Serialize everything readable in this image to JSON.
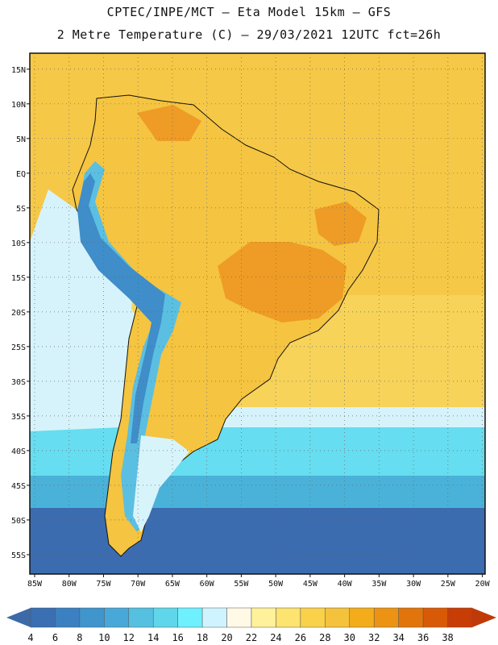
{
  "title": {
    "line1": "CPTEC/INPE/MCT –  Eta Model 15km – GFS",
    "line2": "2 Metre Temperature (C) – 29/03/2021 12UTC fct=26h"
  },
  "axes": {
    "lon_labels": [
      "85W",
      "80W",
      "75W",
      "70W",
      "65W",
      "60W",
      "55W",
      "50W",
      "45W",
      "40W",
      "35W",
      "30W",
      "25W",
      "20W"
    ],
    "lon_values": [
      -85,
      -80,
      -75,
      -70,
      -65,
      -60,
      -55,
      -50,
      -45,
      -40,
      -35,
      -30,
      -25,
      -20
    ],
    "lat_labels": [
      "15N",
      "10N",
      "5N",
      "EQ",
      "5S",
      "10S",
      "15S",
      "20S",
      "25S",
      "30S",
      "35S",
      "40S",
      "45S",
      "50S",
      "55S"
    ],
    "lat_values": [
      15,
      10,
      5,
      0,
      -5,
      -10,
      -15,
      -20,
      -25,
      -30,
      -35,
      -40,
      -45,
      -50,
      -55
    ],
    "lon_range": [
      -85.7,
      -19.6
    ],
    "lat_range": [
      -57.8,
      17.3
    ]
  },
  "colorbar": {
    "labels": [
      "4",
      "6",
      "8",
      "10",
      "12",
      "14",
      "16",
      "18",
      "20",
      "22",
      "24",
      "26",
      "28",
      "30",
      "32",
      "34",
      "36",
      "38"
    ],
    "colors": [
      "#3a6fb3",
      "#3b80c0",
      "#3f95cc",
      "#48a9d8",
      "#55c0e0",
      "#5fd6ea",
      "#6ff0ff",
      "#d0f4ff",
      "#fff9e6",
      "#fff29a",
      "#fde36f",
      "#f9d24a",
      "#f5c23c",
      "#f3ad1a",
      "#ec9313",
      "#e2740c",
      "#d85a06",
      "#c83c05"
    ],
    "under_color": "#3c6aa8",
    "over_color": "#bf3a08"
  },
  "map_colors": {
    "ocean_south_deep": "#3c6cb0",
    "ocean_south_mid": "#4ab2d8",
    "ocean_south_light": "#66ddf0",
    "ocean_temperate": "#d6f3fb",
    "ocean_warm": "#f7d35a",
    "ocean_tropical": "#f6c847",
    "land_warm": "#f5c440",
    "land_hot": "#ee9c25",
    "andes_cold": "#5bbfe2",
    "andes_core": "#3f8dc9",
    "patagonia": "#d8f4fb"
  }
}
